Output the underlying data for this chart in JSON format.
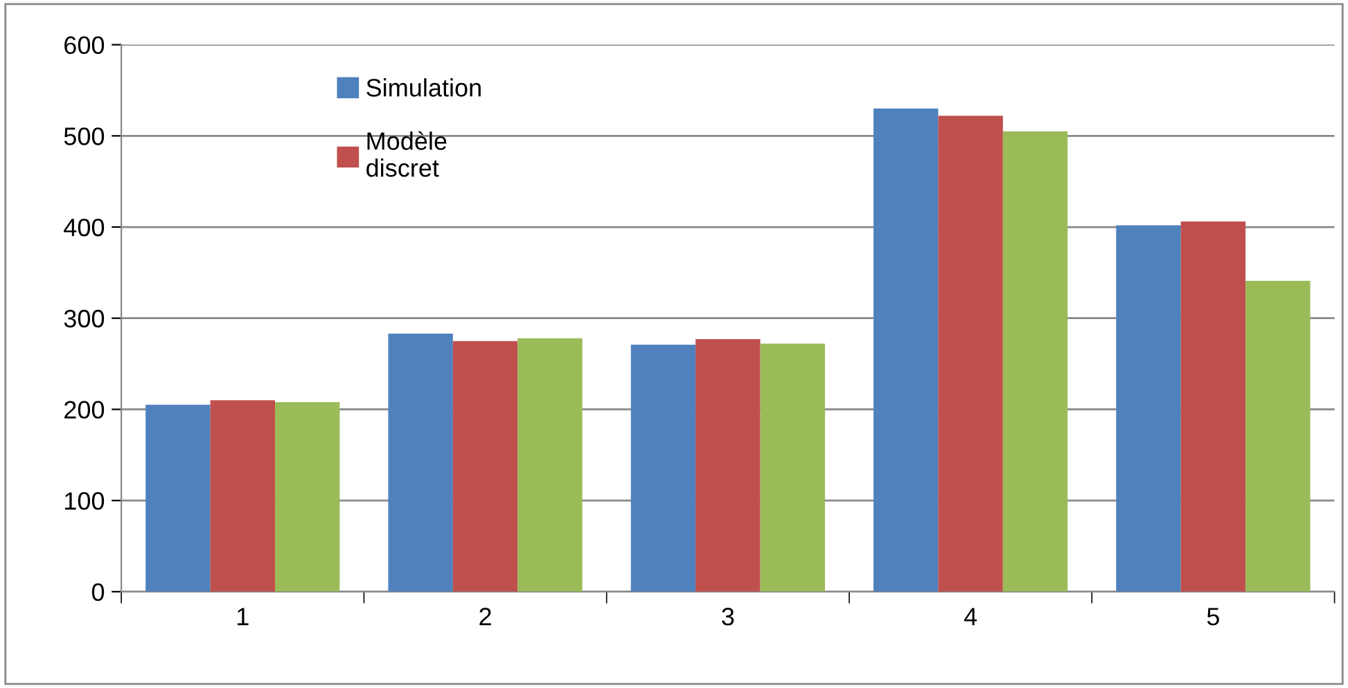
{
  "chart_data": {
    "type": "bar",
    "categories": [
      "1",
      "2",
      "3",
      "4",
      "5"
    ],
    "series": [
      {
        "name": "Simulation",
        "color": "#4f81bd",
        "values": [
          205,
          283,
          271,
          530,
          402
        ]
      },
      {
        "name": "Modèle\ndiscret",
        "color": "#c0504d",
        "values": [
          210,
          275,
          277,
          522,
          406
        ]
      },
      {
        "color": "#9bbb59",
        "values": [
          208,
          278,
          272,
          505,
          341
        ]
      }
    ],
    "ylim": [
      0,
      600
    ],
    "yticks": [
      0,
      100,
      200,
      300,
      400,
      500,
      600
    ],
    "grid": "y",
    "legend": "top left"
  }
}
